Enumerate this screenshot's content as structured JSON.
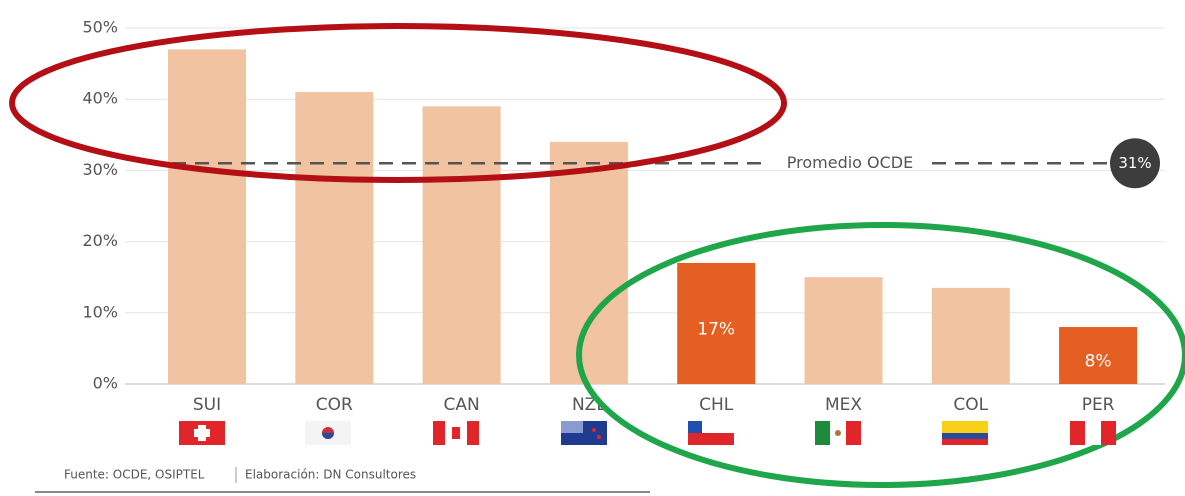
{
  "chart_data": {
    "type": "bar",
    "categories": [
      "SUI",
      "COR",
      "CAN",
      "NZL",
      "CHL",
      "MEX",
      "COL",
      "PER"
    ],
    "values": [
      47,
      41,
      39,
      34,
      17,
      15,
      13.5,
      8
    ],
    "value_labels": [
      null,
      null,
      null,
      null,
      "17%",
      null,
      null,
      "8%"
    ],
    "colors": [
      "#f2c3a0",
      "#f2c3a0",
      "#f2c3a0",
      "#f2c3a0",
      "#e55f23",
      "#f2c3a0",
      "#f2c3a0",
      "#e55f23"
    ],
    "ylim": [
      0,
      50
    ],
    "yticks": [
      {
        "value": 0,
        "label": "0%"
      },
      {
        "value": 10,
        "label": "10%"
      },
      {
        "value": 20,
        "label": "20%"
      },
      {
        "value": 30,
        "label": "30%"
      },
      {
        "value": 40,
        "label": "40%"
      },
      {
        "value": 50,
        "label": "50%"
      }
    ],
    "grid": true,
    "reference_line": {
      "value": 31,
      "label": "Promedio OCDE",
      "value_label": "31%"
    },
    "source": "Fuente: OCDE, OSIPTEL",
    "credit": "Elaboración: DN Consultores"
  }
}
